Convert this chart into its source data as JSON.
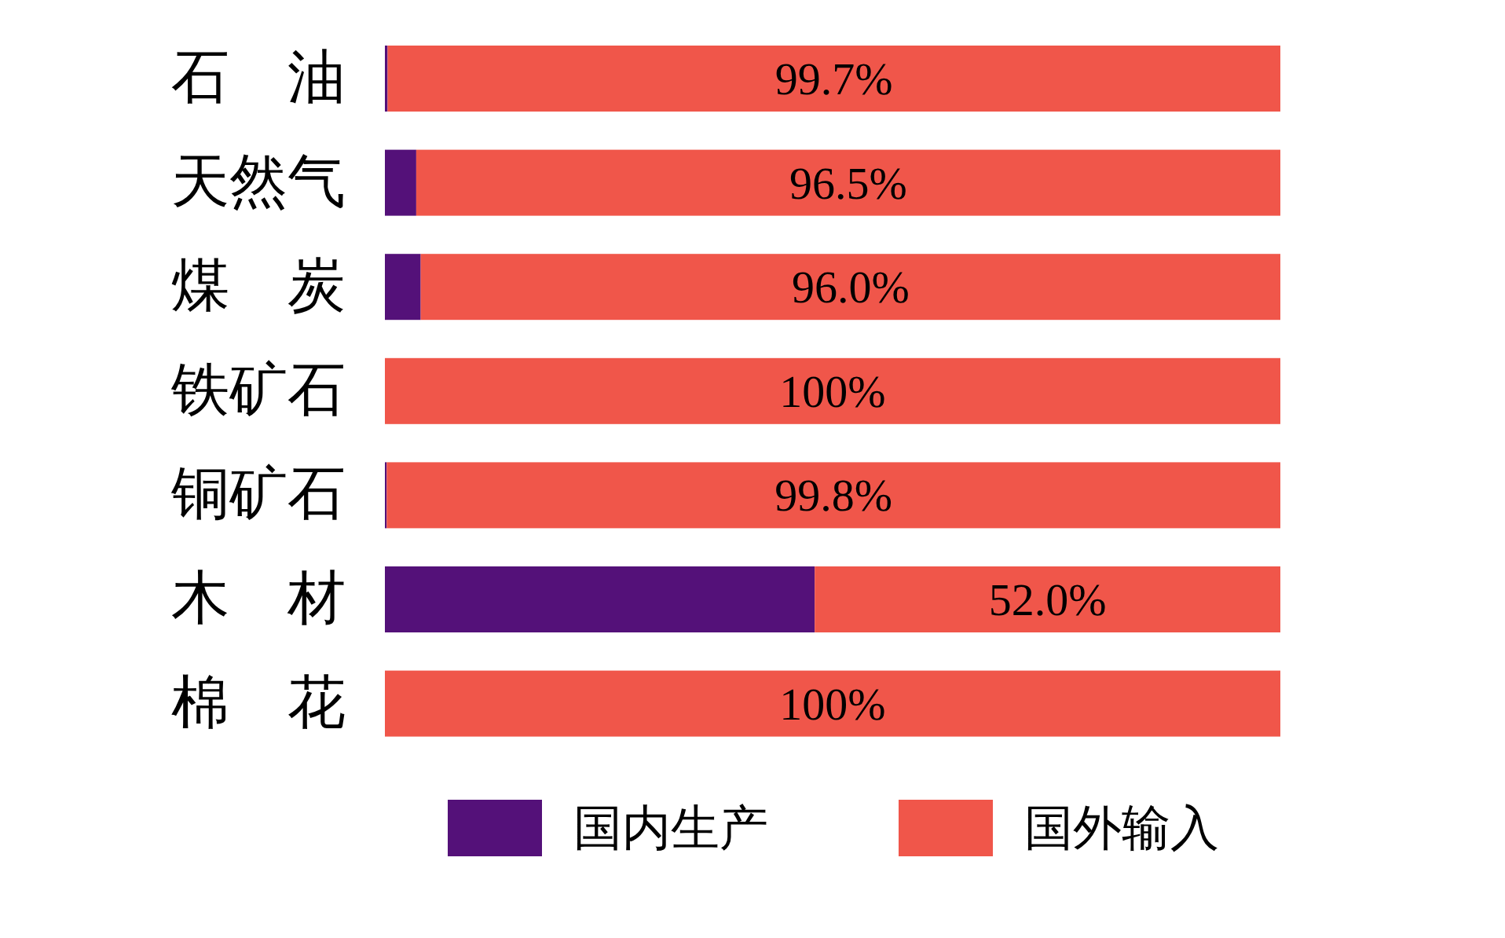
{
  "chart_data": {
    "type": "bar",
    "orientation": "horizontal",
    "stacked": true,
    "tick_labels": "y",
    "legend": "bottom",
    "xlim": [
      0,
      100
    ],
    "categories": [
      "石　油",
      "天然气",
      "煤　炭",
      "铁矿石",
      "铜矿石",
      "木　材",
      "棉　花"
    ],
    "series": [
      {
        "name": "国内生产",
        "color": "#541179",
        "values": [
          0.3,
          3.5,
          4.0,
          0,
          0.2,
          48.0,
          0
        ]
      },
      {
        "name": "国外输入",
        "color": "#f0564a",
        "values": [
          99.7,
          96.5,
          96.0,
          100,
          99.8,
          52.0,
          100
        ],
        "value_labels": [
          "99.7%",
          "96.5%",
          "96.0%",
          "100%",
          "99.8%",
          "52.0%",
          "100%"
        ]
      }
    ]
  }
}
